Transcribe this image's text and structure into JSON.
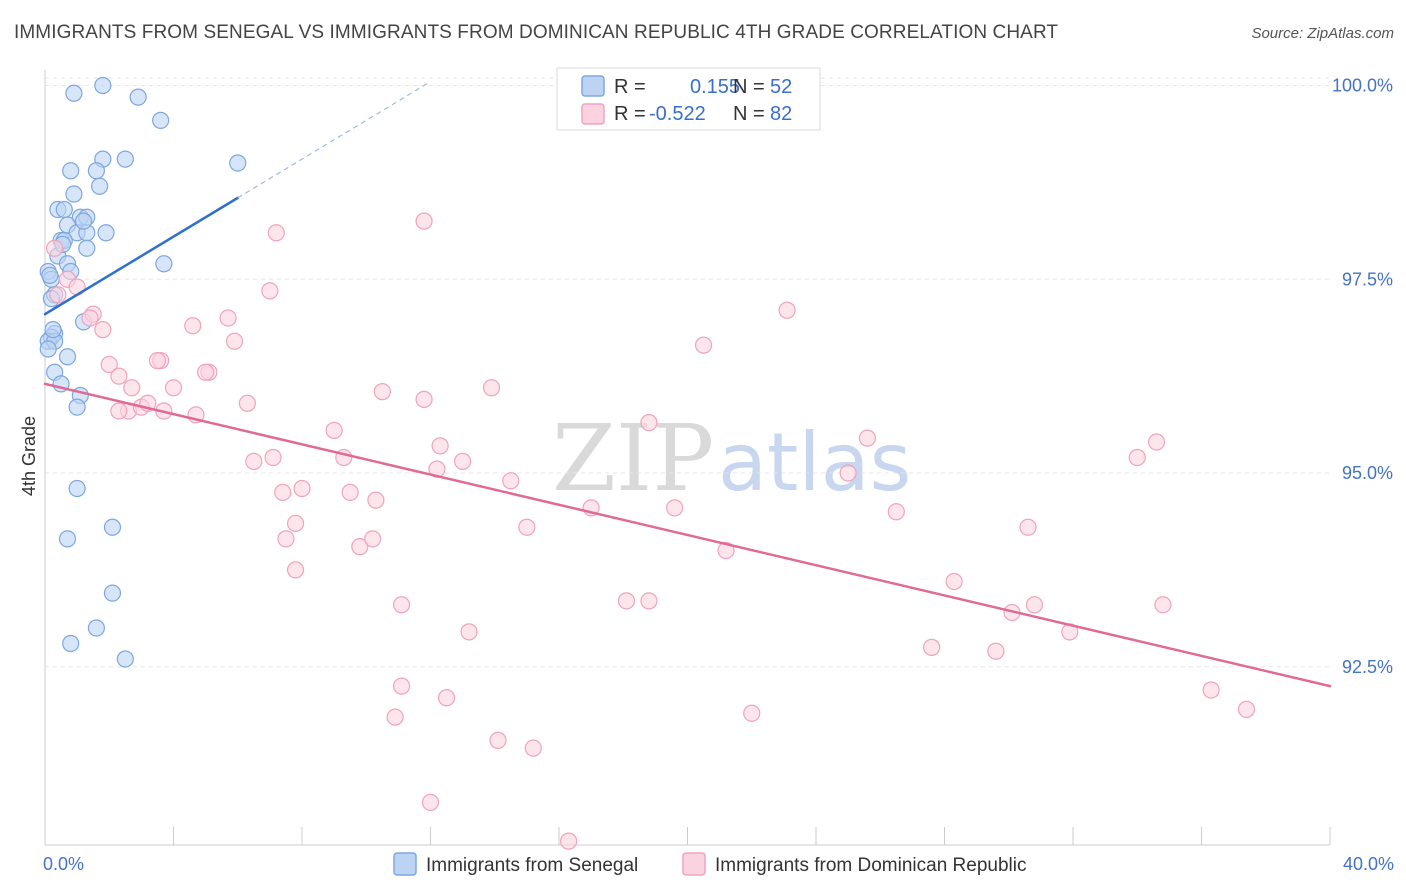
{
  "chart_data": {
    "type": "scatter",
    "title": "IMMIGRANTS FROM SENEGAL VS IMMIGRANTS FROM DOMINICAN REPUBLIC 4TH GRADE CORRELATION CHART",
    "source": "Source: ZipAtlas.com",
    "ylabel": "4th Grade",
    "xlim": [
      0,
      40
    ],
    "ylim": [
      90.2,
      100.2
    ],
    "x_tick_labels": [
      {
        "value": 0,
        "label": "0.0%"
      },
      {
        "value": 40,
        "label": "40.0%"
      }
    ],
    "y_tick_labels": [
      {
        "value": 100.0,
        "label": "100.0%"
      },
      {
        "value": 97.5,
        "label": "97.5%"
      },
      {
        "value": 95.0,
        "label": "95.0%"
      },
      {
        "value": 92.5,
        "label": "92.5%"
      }
    ],
    "legend": [
      {
        "r_label": "R =",
        "r_value": "0.155",
        "n_label": "N =",
        "n_value": "52"
      },
      {
        "r_label": "R =",
        "r_value": "-0.522",
        "n_label": "N =",
        "n_value": "82"
      }
    ],
    "series": [
      {
        "name": "Immigrants from Senegal",
        "color": "#7ea7e0",
        "fill": "#bcd3f3",
        "trend_color": "#2f6fd0",
        "trend": {
          "x0": 0.0,
          "y0": 97.05,
          "x1": 6.0,
          "y1": 98.55,
          "dash_x1": 12.0,
          "dash_y1": 100.05
        },
        "points": [
          [
            1.8,
            100.0
          ],
          [
            0.9,
            99.9
          ],
          [
            2.9,
            99.85
          ],
          [
            3.6,
            99.55
          ],
          [
            1.8,
            99.05
          ],
          [
            2.5,
            99.05
          ],
          [
            6.0,
            99.0
          ],
          [
            0.8,
            98.9
          ],
          [
            1.6,
            98.9
          ],
          [
            1.7,
            98.7
          ],
          [
            0.9,
            98.6
          ],
          [
            0.4,
            98.4
          ],
          [
            0.6,
            98.4
          ],
          [
            1.1,
            98.3
          ],
          [
            1.9,
            98.1
          ],
          [
            0.7,
            98.2
          ],
          [
            1.3,
            98.3
          ],
          [
            1.0,
            98.1
          ],
          [
            0.5,
            98.0
          ],
          [
            1.3,
            98.1
          ],
          [
            0.6,
            98.0
          ],
          [
            1.3,
            97.9
          ],
          [
            0.4,
            97.8
          ],
          [
            3.7,
            97.7
          ],
          [
            0.7,
            97.7
          ],
          [
            0.1,
            97.6
          ],
          [
            0.2,
            97.5
          ],
          [
            0.8,
            97.6
          ],
          [
            0.3,
            97.3
          ],
          [
            0.2,
            97.25
          ],
          [
            1.2,
            96.95
          ],
          [
            0.3,
            96.8
          ],
          [
            0.2,
            96.75
          ],
          [
            0.1,
            96.7
          ],
          [
            0.3,
            96.7
          ],
          [
            0.1,
            96.6
          ],
          [
            0.7,
            96.5
          ],
          [
            0.3,
            96.3
          ],
          [
            0.5,
            96.15
          ],
          [
            1.1,
            96.0
          ],
          [
            1.0,
            95.85
          ],
          [
            1.0,
            94.8
          ],
          [
            2.1,
            94.3
          ],
          [
            0.7,
            94.15
          ],
          [
            2.1,
            93.45
          ],
          [
            1.6,
            93.0
          ],
          [
            0.8,
            92.8
          ],
          [
            2.5,
            92.6
          ],
          [
            0.15,
            97.55
          ],
          [
            0.55,
            97.95
          ],
          [
            0.25,
            96.85
          ],
          [
            1.2,
            98.25
          ]
        ]
      },
      {
        "name": "Immigrants from Dominican Republic",
        "color": "#f0a3bd",
        "fill": "#fbd3e0",
        "trend_color": "#e06a95",
        "trend": {
          "x0": 0.0,
          "y0": 96.15,
          "x1": 40.0,
          "y1": 92.25
        },
        "points": [
          [
            0.3,
            97.9
          ],
          [
            0.7,
            97.5
          ],
          [
            0.4,
            97.3
          ],
          [
            1.0,
            97.4
          ],
          [
            1.5,
            97.05
          ],
          [
            1.8,
            96.85
          ],
          [
            2.0,
            96.4
          ],
          [
            2.3,
            96.25
          ],
          [
            2.7,
            96.1
          ],
          [
            2.6,
            95.8
          ],
          [
            3.0,
            95.85
          ],
          [
            3.2,
            95.9
          ],
          [
            3.7,
            95.8
          ],
          [
            4.0,
            96.1
          ],
          [
            3.6,
            96.45
          ],
          [
            4.7,
            95.75
          ],
          [
            4.6,
            96.9
          ],
          [
            5.1,
            96.3
          ],
          [
            5.7,
            97.0
          ],
          [
            5.9,
            96.7
          ],
          [
            6.3,
            95.9
          ],
          [
            7.0,
            97.35
          ],
          [
            6.5,
            95.15
          ],
          [
            7.1,
            95.2
          ],
          [
            7.4,
            94.75
          ],
          [
            7.5,
            94.15
          ],
          [
            7.8,
            94.35
          ],
          [
            7.8,
            93.75
          ],
          [
            7.2,
            98.1
          ],
          [
            8.0,
            94.8
          ],
          [
            9.0,
            95.55
          ],
          [
            9.3,
            95.2
          ],
          [
            9.8,
            94.05
          ],
          [
            9.5,
            94.75
          ],
          [
            10.3,
            94.65
          ],
          [
            10.2,
            94.15
          ],
          [
            10.5,
            96.05
          ],
          [
            11.1,
            93.3
          ],
          [
            11.1,
            92.25
          ],
          [
            11.8,
            95.95
          ],
          [
            12.3,
            95.35
          ],
          [
            12.2,
            95.05
          ],
          [
            13.0,
            95.15
          ],
          [
            13.2,
            92.95
          ],
          [
            12.5,
            92.1
          ],
          [
            13.9,
            96.1
          ],
          [
            14.5,
            94.9
          ],
          [
            14.1,
            91.55
          ],
          [
            15.0,
            94.3
          ],
          [
            15.2,
            91.45
          ],
          [
            17.0,
            94.55
          ],
          [
            18.1,
            93.35
          ],
          [
            18.8,
            95.65
          ],
          [
            18.8,
            93.35
          ],
          [
            19.6,
            94.55
          ],
          [
            20.5,
            96.65
          ],
          [
            21.2,
            94.0
          ],
          [
            22.0,
            91.9
          ],
          [
            23.1,
            97.1
          ],
          [
            25.0,
            95.0
          ],
          [
            25.6,
            95.45
          ],
          [
            26.5,
            94.5
          ],
          [
            27.6,
            92.75
          ],
          [
            28.3,
            93.6
          ],
          [
            29.6,
            92.7
          ],
          [
            30.1,
            93.2
          ],
          [
            30.6,
            94.3
          ],
          [
            30.8,
            93.3
          ],
          [
            31.9,
            92.95
          ],
          [
            34.0,
            95.2
          ],
          [
            34.6,
            95.4
          ],
          [
            34.8,
            93.3
          ],
          [
            36.3,
            92.2
          ],
          [
            37.4,
            91.95
          ],
          [
            11.8,
            98.25
          ],
          [
            5.0,
            96.3
          ],
          [
            3.5,
            96.45
          ],
          [
            1.4,
            97.0
          ],
          [
            2.3,
            95.8
          ],
          [
            10.9,
            91.85
          ],
          [
            12.0,
            90.75
          ],
          [
            16.3,
            90.25
          ]
        ]
      }
    ]
  }
}
